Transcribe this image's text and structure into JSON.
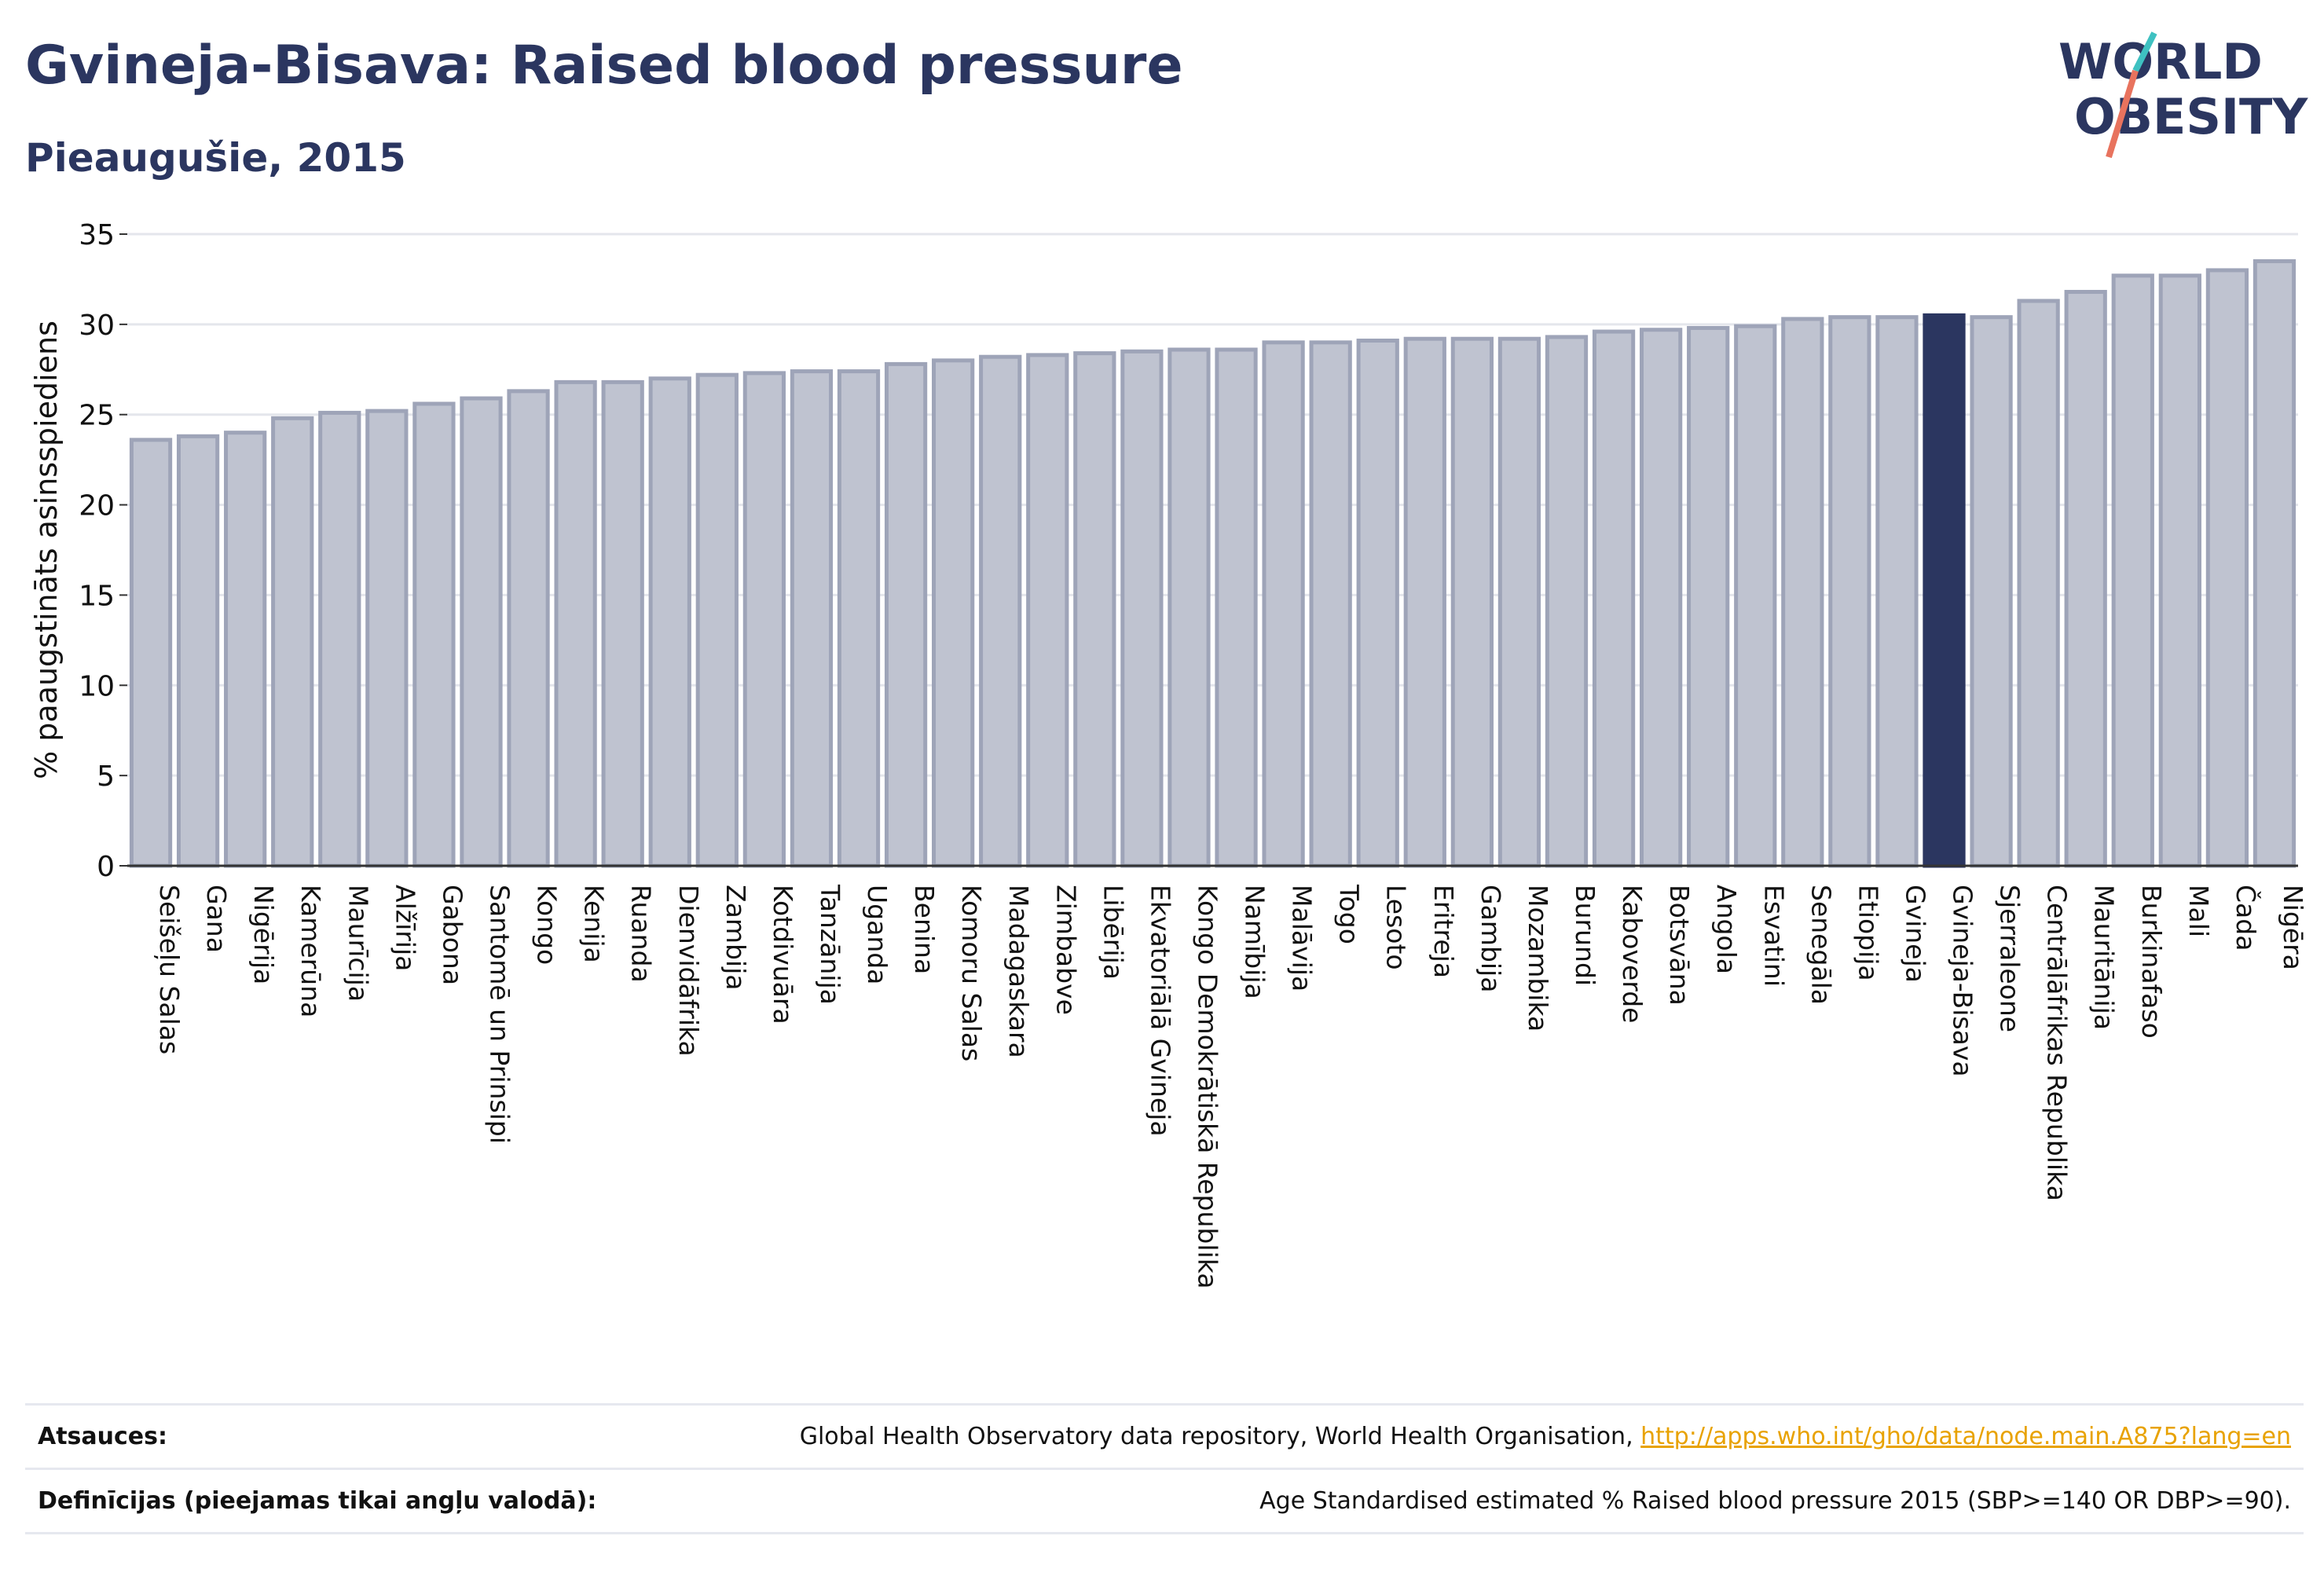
{
  "title": "Gvineja-Bisava: Raised blood pressure",
  "subtitle": "Pieaugušie, 2015",
  "logo": {
    "line1": "WORLD",
    "line2": "OBESITY"
  },
  "colors": {
    "bar": "#bfc3d0",
    "bar_edge": "#9ea4b8",
    "highlight": "#2b3660",
    "title": "#2b3660",
    "logo_slash_red": "#e8735e",
    "logo_slash_teal": "#3ec1c1"
  },
  "chart_data": {
    "type": "bar",
    "ylabel": "% paaugstināts asinsspiediens",
    "ylim": [
      0,
      35
    ],
    "yticks": [
      0,
      5,
      10,
      15,
      20,
      25,
      30,
      35
    ],
    "grid": true,
    "highlight": "Gvineja-Bisava",
    "categories": [
      "Seišeļu Salas",
      "Gana",
      "Nigērija",
      "Kamerūna",
      "Maurīcija",
      "Alžīrija",
      "Gabona",
      "Santomē un Prinsipi",
      "Kongo",
      "Kenija",
      "Ruanda",
      "Dienvidāfrika",
      "Zambija",
      "Kotdivuāra",
      "Tanzānija",
      "Uganda",
      "Benina",
      "Komoru Salas",
      "Madagaskara",
      "Zimbabve",
      "Libērija",
      "Ekvatoriālā Gvineja",
      "Kongo Demokrātiskā Republika",
      "Namībija",
      "Malāvija",
      "Togo",
      "Lesoto",
      "Eritreja",
      "Gambija",
      "Mozambika",
      "Burundi",
      "Kaboverde",
      "Botsvāna",
      "Angola",
      "Esvatini",
      "Senegāla",
      "Etiopija",
      "Gvineja",
      "Gvineja-Bisava",
      "Sjerraleone",
      "Centrālāfrikas Republika",
      "Mauritānija",
      "Burkinafaso",
      "Mali",
      "Čada",
      "Nigēra"
    ],
    "values": [
      23.6,
      23.8,
      24.0,
      24.8,
      25.1,
      25.2,
      25.6,
      25.9,
      26.3,
      26.8,
      26.8,
      27.0,
      27.2,
      27.3,
      27.4,
      27.4,
      27.8,
      28.0,
      28.2,
      28.3,
      28.4,
      28.5,
      28.6,
      28.6,
      29.0,
      29.0,
      29.1,
      29.2,
      29.2,
      29.2,
      29.3,
      29.6,
      29.7,
      29.8,
      29.9,
      30.3,
      30.4,
      30.4,
      30.5,
      30.4,
      31.3,
      31.8,
      32.7,
      32.7,
      33.0,
      33.5
    ]
  },
  "footer": {
    "sources_label": "Atsauces:",
    "sources_text": "Global Health Observatory data repository, World Health Organisation, ",
    "sources_link": "http://apps.who.int/gho/data/node.main.A875?lang=en",
    "definitions_label": "Definīcijas (pieejamas tikai angļu valodā):",
    "definitions_text": "Age Standardised estimated % Raised blood pressure 2015 (SBP>=140 OR DBP>=90)."
  }
}
